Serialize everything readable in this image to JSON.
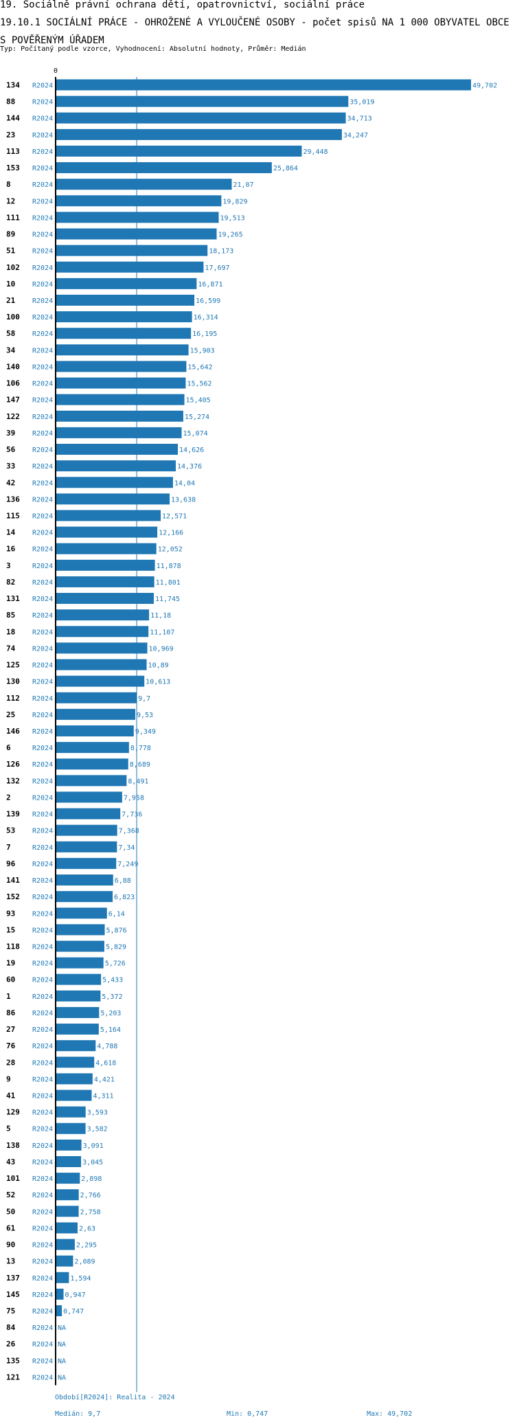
{
  "header": {
    "title": "19. Sociálně právní ochrana dětí, opatrovnictví, sociální práce",
    "subtitle": "19.10.1 SOCIÁLNÍ PRÁCE - OHROŽENÉ A VYLOUČENÉ OSOBY - počet spisů NA 1 000 OBYVATEL OBCE S POVĚŘENÝM ÚŘADEM",
    "meta": "Typ: Počítaný podle vzorce, Vyhodnocení: Absolutní hodnoty, Průměr: Medián"
  },
  "chart_data": {
    "type": "bar",
    "orientation": "horizontal",
    "axis_zero_label": "0",
    "xlim": [
      0,
      49.702
    ],
    "median": 9.7,
    "period_label": "R2024",
    "categories": [
      "134",
      "88",
      "144",
      "23",
      "113",
      "153",
      "8",
      "12",
      "111",
      "89",
      "51",
      "102",
      "10",
      "21",
      "100",
      "58",
      "34",
      "140",
      "106",
      "147",
      "122",
      "39",
      "56",
      "33",
      "42",
      "136",
      "115",
      "14",
      "16",
      "3",
      "82",
      "131",
      "85",
      "18",
      "74",
      "125",
      "130",
      "112",
      "25",
      "146",
      "6",
      "126",
      "132",
      "2",
      "139",
      "53",
      "7",
      "96",
      "141",
      "152",
      "93",
      "15",
      "118",
      "19",
      "60",
      "1",
      "86",
      "27",
      "76",
      "28",
      "9",
      "41",
      "129",
      "5",
      "138",
      "43",
      "101",
      "52",
      "50",
      "61",
      "90",
      "13",
      "137",
      "145",
      "75",
      "84",
      "26",
      "135",
      "121"
    ],
    "values": [
      49.702,
      35.019,
      34.713,
      34.247,
      29.448,
      25.864,
      21.07,
      19.829,
      19.513,
      19.265,
      18.173,
      17.697,
      16.871,
      16.599,
      16.314,
      16.195,
      15.903,
      15.642,
      15.562,
      15.405,
      15.274,
      15.074,
      14.626,
      14.376,
      14.04,
      13.638,
      12.571,
      12.166,
      12.052,
      11.878,
      11.801,
      11.745,
      11.18,
      11.107,
      10.969,
      10.89,
      10.613,
      9.7,
      9.53,
      9.349,
      8.778,
      8.689,
      8.491,
      7.958,
      7.736,
      7.368,
      7.34,
      7.249,
      6.88,
      6.823,
      6.14,
      5.876,
      5.829,
      5.726,
      5.433,
      5.372,
      5.203,
      5.164,
      4.788,
      4.618,
      4.421,
      4.311,
      3.593,
      3.582,
      3.091,
      3.045,
      2.898,
      2.766,
      2.758,
      2.63,
      2.295,
      2.089,
      1.594,
      0.947,
      0.747,
      null,
      null,
      null,
      null
    ],
    "value_labels": [
      "49,702",
      "35,019",
      "34,713",
      "34,247",
      "29,448",
      "25,864",
      "21,07",
      "19,829",
      "19,513",
      "19,265",
      "18,173",
      "17,697",
      "16,871",
      "16,599",
      "16,314",
      "16,195",
      "15,903",
      "15,642",
      "15,562",
      "15,405",
      "15,274",
      "15,074",
      "14,626",
      "14,376",
      "14,04",
      "13,638",
      "12,571",
      "12,166",
      "12,052",
      "11,878",
      "11,801",
      "11,745",
      "11,18",
      "11,107",
      "10,969",
      "10,89",
      "10,613",
      "9,7",
      "9,53",
      "9,349",
      "8,778",
      "8,689",
      "8,491",
      "7,958",
      "7,736",
      "7,368",
      "7,34",
      "7,249",
      "6,88",
      "6,823",
      "6,14",
      "5,876",
      "5,829",
      "5,726",
      "5,433",
      "5,372",
      "5,203",
      "5,164",
      "4,788",
      "4,618",
      "4,421",
      "4,311",
      "3,593",
      "3,582",
      "3,091",
      "3,045",
      "2,898",
      "2,766",
      "2,758",
      "2,63",
      "2,295",
      "2,089",
      "1,594",
      "0,947",
      "0,747",
      "NA",
      "NA",
      "NA",
      "NA"
    ],
    "colors": {
      "bar": "#1f77b4",
      "label": "#1f77b4",
      "category": "#000000"
    }
  },
  "footer": {
    "period": "Období[R2024]: Realita - 2024",
    "median": "Medián: 9,7",
    "min": "Min: 0,747",
    "max": "Max: 49,702"
  }
}
